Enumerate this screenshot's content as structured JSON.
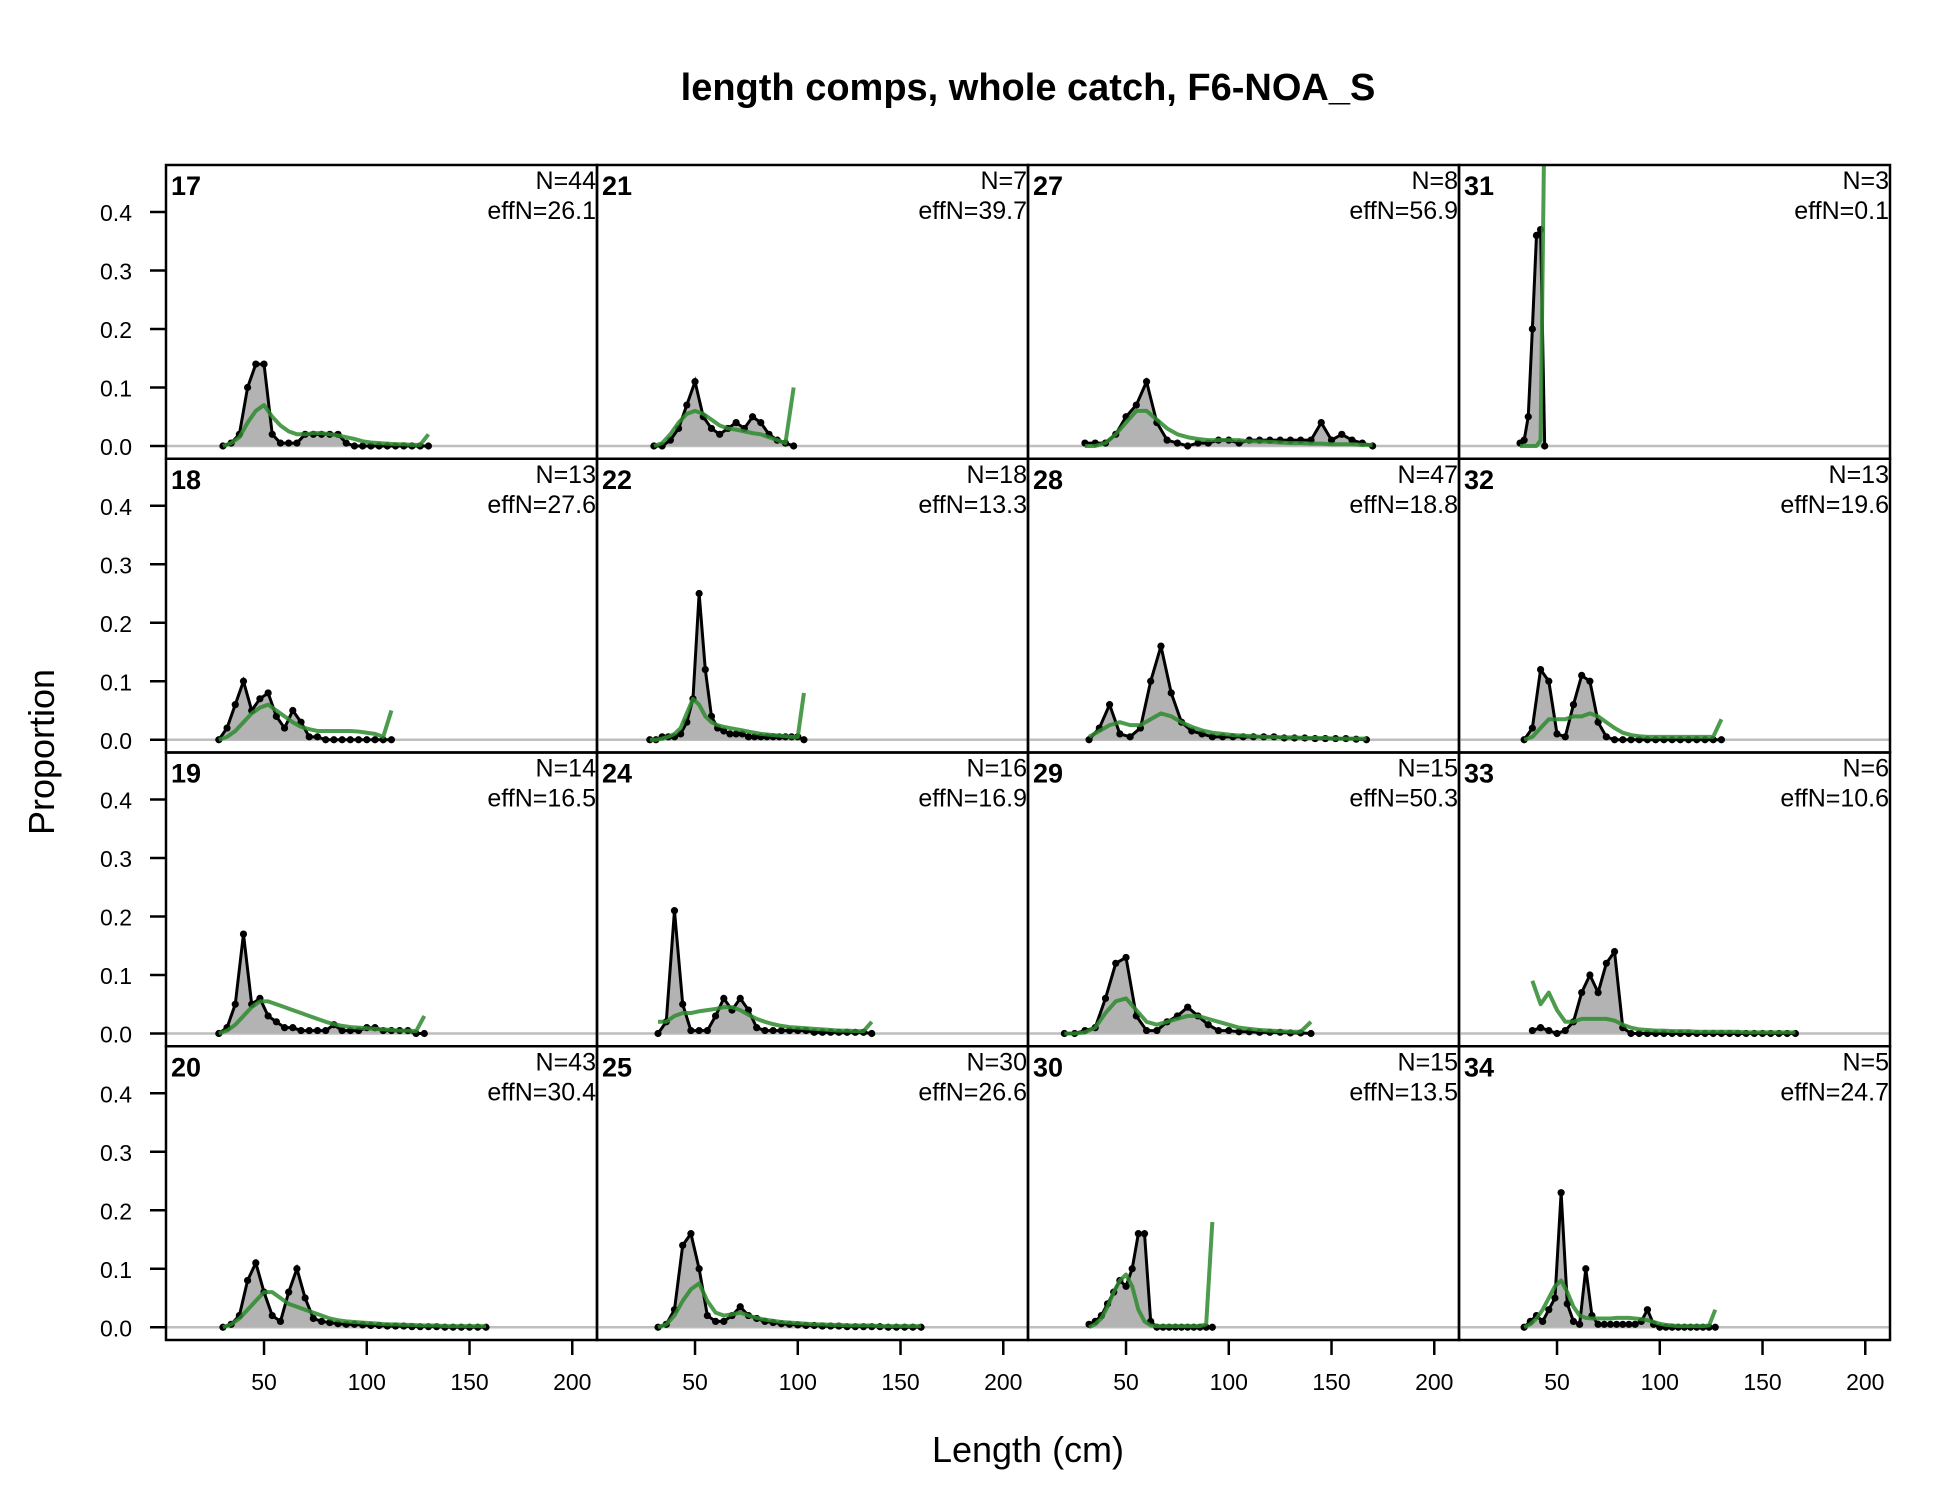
{
  "chart_data": {
    "type": "area",
    "title": "length comps, whole catch, F6-NOA_S",
    "xlabel": "Length (cm)",
    "ylabel": "Proportion",
    "xlim": [
      2.3,
      212
    ],
    "ylim": [
      -0.02,
      0.48
    ],
    "xticks": [
      50,
      100,
      150,
      200
    ],
    "yticks": [
      0.0,
      0.1,
      0.2,
      0.3,
      0.4
    ],
    "ytick_labels": [
      "0.0",
      "0.1",
      "0.2",
      "0.3",
      "0.4"
    ],
    "layout": "4x4 panels, columns share x axis, rows share y axis",
    "series_legend": {
      "observed": "grey filled area with black line and points",
      "expected": "green line"
    },
    "colors": {
      "observed_fill": "#b3b3b3",
      "observed_line": "#000000",
      "expected": "#2e8b2e",
      "zero_line": "#bebebe"
    },
    "panels": [
      {
        "label": "17",
        "N": "N=44",
        "effN": "effN=26.1",
        "x_start": 30,
        "x_step": 4,
        "obs": [
          0,
          0.005,
          0.02,
          0.1,
          0.14,
          0.14,
          0.02,
          0.005,
          0.005,
          0.005,
          0.02,
          0.02,
          0.02,
          0.02,
          0.02,
          0.005,
          0,
          0,
          0,
          0,
          0,
          0,
          0,
          0,
          0,
          0
        ],
        "exp": [
          0,
          0.005,
          0.015,
          0.04,
          0.06,
          0.07,
          0.05,
          0.035,
          0.025,
          0.02,
          0.02,
          0.022,
          0.022,
          0.02,
          0.018,
          0.015,
          0.012,
          0.008,
          0.006,
          0.005,
          0.004,
          0.003,
          0.003,
          0.002,
          0.002,
          0.02
        ]
      },
      {
        "label": "21",
        "N": "N=7",
        "effN": "effN=39.7",
        "x_start": 30,
        "x_step": 4,
        "obs": [
          0,
          0,
          0.01,
          0.03,
          0.07,
          0.11,
          0.05,
          0.03,
          0.02,
          0.03,
          0.04,
          0.03,
          0.05,
          0.04,
          0.02,
          0.01,
          0.005,
          0
        ],
        "exp": [
          0,
          0.005,
          0.02,
          0.04,
          0.055,
          0.06,
          0.055,
          0.045,
          0.035,
          0.03,
          0.028,
          0.025,
          0.022,
          0.02,
          0.015,
          0.01,
          0.005,
          0.1
        ]
      },
      {
        "label": "27",
        "N": "N=8",
        "effN": "effN=56.9",
        "x_start": 30,
        "x_step": 5,
        "obs": [
          0.005,
          0.005,
          0.005,
          0.02,
          0.05,
          0.07,
          0.11,
          0.04,
          0.01,
          0.005,
          0,
          0.005,
          0.005,
          0.01,
          0.01,
          0.005,
          0.01,
          0.01,
          0.01,
          0.01,
          0.01,
          0.01,
          0.01,
          0.04,
          0.01,
          0.02,
          0.01,
          0.005,
          0
        ],
        "exp": [
          0,
          0,
          0.005,
          0.02,
          0.04,
          0.06,
          0.06,
          0.045,
          0.03,
          0.02,
          0.015,
          0.012,
          0.01,
          0.01,
          0.01,
          0.01,
          0.008,
          0.008,
          0.007,
          0.006,
          0.005,
          0.005,
          0.004,
          0.004,
          0.003,
          0.003,
          0.003,
          0.002,
          0.002
        ]
      },
      {
        "label": "31",
        "N": "N=3",
        "effN": "effN=0.1",
        "x_start": 32,
        "x_step": 2,
        "obs": [
          0.005,
          0.01,
          0.05,
          0.2,
          0.36,
          0.37,
          0
        ],
        "exp": [
          0,
          0,
          0,
          0,
          0,
          0.01,
          0.6
        ]
      },
      {
        "label": "18",
        "N": "N=13",
        "effN": "effN=27.6",
        "x_start": 28,
        "x_step": 4,
        "obs": [
          0,
          0.02,
          0.06,
          0.1,
          0.05,
          0.07,
          0.08,
          0.04,
          0.02,
          0.05,
          0.03,
          0.005,
          0.005,
          0,
          0,
          0,
          0,
          0,
          0,
          0,
          0,
          0
        ],
        "exp": [
          0,
          0.005,
          0.015,
          0.03,
          0.045,
          0.055,
          0.06,
          0.05,
          0.04,
          0.03,
          0.022,
          0.018,
          0.015,
          0.015,
          0.015,
          0.015,
          0.015,
          0.014,
          0.012,
          0.01,
          0.005,
          0.05
        ]
      },
      {
        "label": "22",
        "N": "N=18",
        "effN": "effN=13.3",
        "x_start": 28,
        "x_step": 3,
        "obs": [
          0,
          0,
          0.005,
          0.005,
          0.005,
          0.01,
          0.03,
          0.07,
          0.25,
          0.12,
          0.04,
          0.02,
          0.015,
          0.01,
          0.01,
          0.01,
          0.005,
          0.005,
          0.005,
          0.005,
          0.005,
          0.005,
          0.005,
          0.005,
          0.005,
          0
        ],
        "exp": [
          0,
          0,
          0.002,
          0.005,
          0.01,
          0.02,
          0.045,
          0.07,
          0.06,
          0.04,
          0.03,
          0.025,
          0.022,
          0.02,
          0.018,
          0.016,
          0.014,
          0.012,
          0.01,
          0.009,
          0.008,
          0.007,
          0.006,
          0.005,
          0.005,
          0.08
        ]
      },
      {
        "label": "28",
        "N": "N=47",
        "effN": "effN=18.8",
        "x_start": 32,
        "x_step": 5,
        "obs": [
          0,
          0.02,
          0.06,
          0.01,
          0.005,
          0.02,
          0.1,
          0.16,
          0.08,
          0.03,
          0.015,
          0.01,
          0.005,
          0.005,
          0.005,
          0.005,
          0.005,
          0.005,
          0.005,
          0.003,
          0.003,
          0.003,
          0.002,
          0.002,
          0.002,
          0.002,
          0.001,
          0
        ],
        "exp": [
          0.005,
          0.015,
          0.025,
          0.03,
          0.025,
          0.025,
          0.035,
          0.045,
          0.04,
          0.03,
          0.022,
          0.016,
          0.012,
          0.01,
          0.008,
          0.007,
          0.006,
          0.005,
          0.005,
          0.004,
          0.004,
          0.003,
          0.003,
          0.003,
          0.002,
          0.002,
          0.002,
          0.002
        ]
      },
      {
        "label": "32",
        "N": "N=13",
        "effN": "effN=19.6",
        "x_start": 34,
        "x_step": 4,
        "obs": [
          0,
          0.02,
          0.12,
          0.1,
          0.01,
          0.005,
          0.06,
          0.11,
          0.1,
          0.03,
          0.005,
          0,
          0,
          0,
          0,
          0,
          0,
          0,
          0,
          0,
          0,
          0,
          0,
          0,
          0
        ],
        "exp": [
          0,
          0.005,
          0.02,
          0.035,
          0.035,
          0.035,
          0.04,
          0.04,
          0.045,
          0.04,
          0.03,
          0.02,
          0.012,
          0.008,
          0.006,
          0.005,
          0.005,
          0.005,
          0.005,
          0.005,
          0.005,
          0.005,
          0.005,
          0.005,
          0.035
        ]
      },
      {
        "label": "19",
        "N": "N=14",
        "effN": "effN=16.5",
        "x_start": 28,
        "x_step": 4,
        "obs": [
          0,
          0.01,
          0.05,
          0.17,
          0.05,
          0.06,
          0.03,
          0.02,
          0.01,
          0.01,
          0.005,
          0.005,
          0.005,
          0.005,
          0.015,
          0.005,
          0.005,
          0.005,
          0.01,
          0.01,
          0.005,
          0.005,
          0.005,
          0.005,
          0,
          0
        ],
        "exp": [
          0,
          0.005,
          0.015,
          0.03,
          0.045,
          0.055,
          0.055,
          0.05,
          0.045,
          0.04,
          0.035,
          0.03,
          0.025,
          0.02,
          0.016,
          0.013,
          0.011,
          0.01,
          0.009,
          0.008,
          0.007,
          0.006,
          0.005,
          0.005,
          0.004,
          0.03
        ]
      },
      {
        "label": "24",
        "N": "N=16",
        "effN": "effN=16.9",
        "x_start": 32,
        "x_step": 4,
        "obs": [
          0,
          0.02,
          0.21,
          0.05,
          0.005,
          0.005,
          0.005,
          0.03,
          0.06,
          0.04,
          0.06,
          0.04,
          0.01,
          0.005,
          0.005,
          0.005,
          0.005,
          0.005,
          0.005,
          0.002,
          0.002,
          0.002,
          0.002,
          0.002,
          0.002,
          0.002,
          0
        ],
        "exp": [
          0.02,
          0.02,
          0.03,
          0.035,
          0.035,
          0.038,
          0.04,
          0.042,
          0.045,
          0.045,
          0.04,
          0.032,
          0.025,
          0.02,
          0.016,
          0.013,
          0.011,
          0.01,
          0.009,
          0.008,
          0.007,
          0.006,
          0.005,
          0.005,
          0.004,
          0.004,
          0.02
        ]
      },
      {
        "label": "29",
        "N": "N=15",
        "effN": "effN=50.3",
        "x_start": 20,
        "x_step": 5,
        "obs": [
          0,
          0,
          0.005,
          0.01,
          0.06,
          0.12,
          0.13,
          0.03,
          0.005,
          0.005,
          0.02,
          0.03,
          0.045,
          0.03,
          0.015,
          0.005,
          0.005,
          0.003,
          0.003,
          0.002,
          0.002,
          0.002,
          0.001,
          0.001,
          0
        ],
        "exp": [
          0,
          0,
          0.002,
          0.01,
          0.035,
          0.055,
          0.06,
          0.04,
          0.02,
          0.015,
          0.02,
          0.025,
          0.03,
          0.03,
          0.025,
          0.02,
          0.015,
          0.01,
          0.008,
          0.006,
          0.005,
          0.004,
          0.003,
          0.003,
          0.02
        ]
      },
      {
        "label": "33",
        "N": "N=6",
        "effN": "effN=10.6",
        "x_start": 38,
        "x_step": 4,
        "obs": [
          0.005,
          0.01,
          0.005,
          0,
          0.005,
          0.02,
          0.07,
          0.1,
          0.07,
          0.12,
          0.14,
          0.01,
          0,
          0,
          0,
          0,
          0,
          0,
          0,
          0,
          0,
          0,
          0,
          0,
          0,
          0,
          0,
          0,
          0,
          0,
          0,
          0,
          0
        ],
        "exp": [
          0.09,
          0.05,
          0.07,
          0.04,
          0.02,
          0.02,
          0.025,
          0.025,
          0.025,
          0.025,
          0.022,
          0.015,
          0.01,
          0.007,
          0.006,
          0.005,
          0.005,
          0.004,
          0.004,
          0.004,
          0.003,
          0.003,
          0.003,
          0.003,
          0.003,
          0.003,
          0.002,
          0.002,
          0.002,
          0.002,
          0.002,
          0.002,
          0.002
        ]
      },
      {
        "label": "20",
        "N": "N=43",
        "effN": "effN=30.4",
        "x_start": 30,
        "x_step": 4,
        "obs": [
          0,
          0.005,
          0.02,
          0.08,
          0.11,
          0.06,
          0.02,
          0.01,
          0.06,
          0.1,
          0.05,
          0.015,
          0.01,
          0.008,
          0.006,
          0.005,
          0.005,
          0.004,
          0.003,
          0.003,
          0.002,
          0.002,
          0.002,
          0.001,
          0.001,
          0.001,
          0.001,
          0,
          0,
          0,
          0,
          0,
          0
        ],
        "exp": [
          0,
          0.005,
          0.015,
          0.03,
          0.045,
          0.06,
          0.06,
          0.05,
          0.04,
          0.035,
          0.03,
          0.025,
          0.02,
          0.015,
          0.012,
          0.01,
          0.009,
          0.008,
          0.007,
          0.006,
          0.005,
          0.005,
          0.004,
          0.004,
          0.003,
          0.003,
          0.003,
          0.002,
          0.002,
          0.002,
          0.002,
          0.002,
          0.002
        ]
      },
      {
        "label": "25",
        "N": "N=30",
        "effN": "effN=26.6",
        "x_start": 32,
        "x_step": 4,
        "obs": [
          0,
          0.005,
          0.03,
          0.14,
          0.16,
          0.1,
          0.02,
          0.01,
          0.01,
          0.02,
          0.035,
          0.02,
          0.015,
          0.01,
          0.008,
          0.006,
          0.005,
          0.004,
          0.003,
          0.003,
          0.002,
          0.002,
          0.002,
          0.001,
          0.001,
          0.001,
          0.001,
          0.001,
          0,
          0,
          0,
          0,
          0
        ],
        "exp": [
          0,
          0.005,
          0.02,
          0.045,
          0.065,
          0.075,
          0.045,
          0.025,
          0.02,
          0.022,
          0.025,
          0.02,
          0.016,
          0.013,
          0.011,
          0.009,
          0.008,
          0.007,
          0.006,
          0.005,
          0.005,
          0.004,
          0.004,
          0.003,
          0.003,
          0.003,
          0.003,
          0.002,
          0.002,
          0.002,
          0.002,
          0.002,
          0.002
        ]
      },
      {
        "label": "30",
        "N": "N=15",
        "effN": "effN=13.5",
        "x_start": 32,
        "x_step": 3,
        "obs": [
          0.005,
          0.01,
          0.02,
          0.04,
          0.06,
          0.08,
          0.07,
          0.1,
          0.16,
          0.16,
          0.01,
          0,
          0,
          0,
          0,
          0,
          0,
          0,
          0,
          0,
          0
        ],
        "exp": [
          0,
          0.005,
          0.015,
          0.035,
          0.06,
          0.08,
          0.09,
          0.07,
          0.03,
          0.01,
          0.003,
          0.002,
          0.002,
          0.002,
          0.002,
          0.002,
          0.002,
          0.002,
          0.002,
          0.005,
          0.18
        ]
      },
      {
        "label": "34",
        "N": "N=5",
        "effN": "effN=24.7",
        "x_start": 34,
        "x_step": 3,
        "obs": [
          0,
          0.01,
          0.02,
          0.01,
          0.03,
          0.05,
          0.23,
          0.04,
          0.01,
          0.005,
          0.1,
          0.02,
          0.005,
          0.005,
          0.005,
          0.005,
          0.005,
          0.005,
          0.005,
          0.01,
          0.03,
          0.005,
          0,
          0,
          0,
          0,
          0,
          0,
          0,
          0,
          0,
          0
        ],
        "exp": [
          0,
          0.005,
          0.015,
          0.03,
          0.05,
          0.07,
          0.08,
          0.06,
          0.035,
          0.02,
          0.016,
          0.015,
          0.015,
          0.015,
          0.015,
          0.016,
          0.016,
          0.016,
          0.015,
          0.014,
          0.012,
          0.009,
          0.006,
          0.004,
          0.003,
          0.002,
          0.002,
          0.002,
          0.002,
          0.002,
          0.003,
          0.03
        ]
      }
    ]
  }
}
